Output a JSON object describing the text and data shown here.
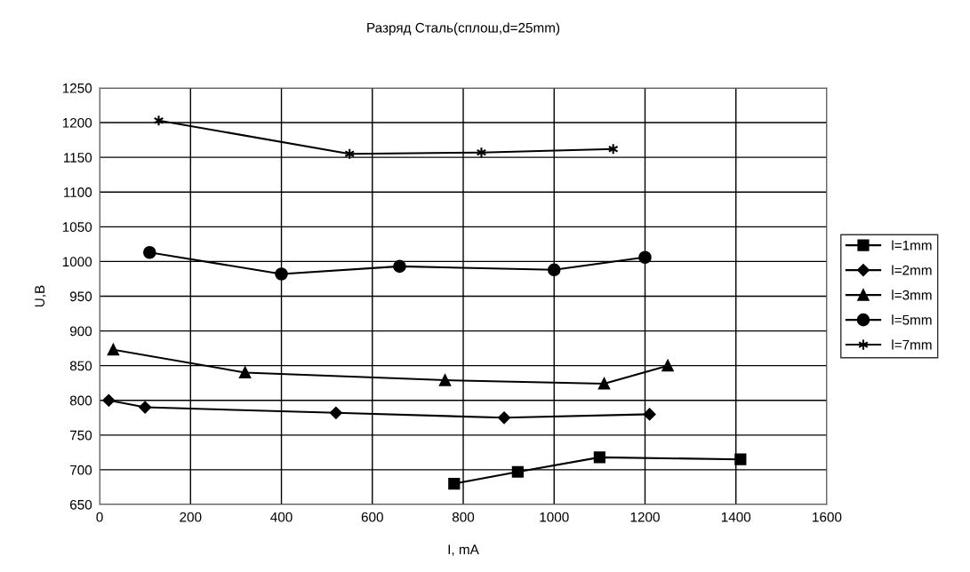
{
  "chart_data": {
    "type": "line",
    "title": "Разряд Сталь(сплош,d=25mm)",
    "xlabel": "I, mA",
    "ylabel": "U,B",
    "xlim": [
      0,
      1600
    ],
    "xticks": [
      0,
      200,
      400,
      600,
      800,
      1000,
      1200,
      1400,
      1600
    ],
    "ylim": [
      650,
      1250
    ],
    "yticks": [
      650,
      700,
      750,
      800,
      850,
      900,
      950,
      1000,
      1050,
      1100,
      1150,
      1200,
      1250
    ],
    "grid": true,
    "legend": "right",
    "line_style": "solid",
    "series": [
      {
        "name": "l=1mm",
        "color": "#000000",
        "marker": "square",
        "x": [
          780,
          920,
          1100,
          1410
        ],
        "values": [
          680,
          697,
          718,
          715
        ]
      },
      {
        "name": "l=2mm",
        "color": "#000000",
        "marker": "diamond",
        "x": [
          20,
          100,
          520,
          890,
          1210
        ],
        "values": [
          800,
          790,
          782,
          775,
          780
        ]
      },
      {
        "name": "l=3mm",
        "color": "#000000",
        "marker": "triangle",
        "x": [
          30,
          320,
          760,
          1110,
          1250
        ],
        "values": [
          873,
          840,
          829,
          824,
          850
        ]
      },
      {
        "name": "l=5mm",
        "color": "#000000",
        "marker": "circle",
        "x": [
          110,
          400,
          660,
          1000,
          1200
        ],
        "values": [
          1013,
          982,
          993,
          988,
          1006
        ]
      },
      {
        "name": "l=7mm",
        "color": "#000000",
        "marker": "cross",
        "x": [
          130,
          550,
          840,
          1130
        ],
        "values": [
          1203,
          1155,
          1157,
          1162
        ]
      }
    ]
  }
}
